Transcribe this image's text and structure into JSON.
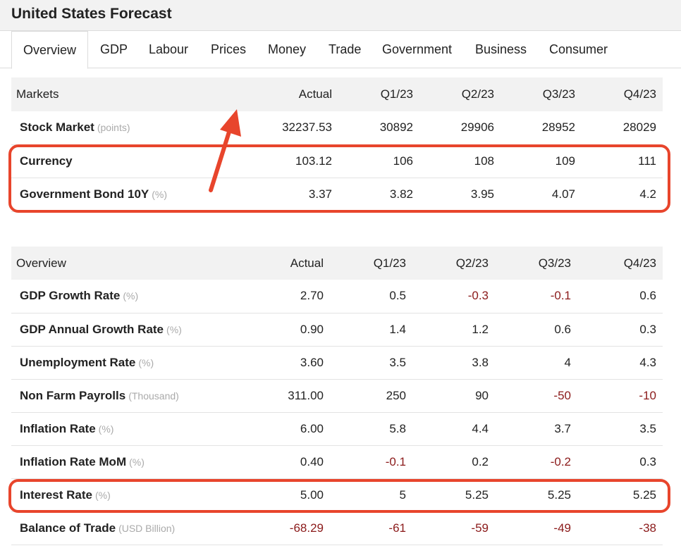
{
  "page": {
    "title": "United States Forecast"
  },
  "tabs": [
    {
      "label": "Overview",
      "active": true
    },
    {
      "label": "GDP"
    },
    {
      "label": "Labour"
    },
    {
      "label": "Prices"
    },
    {
      "label": "Money"
    },
    {
      "label": "Trade"
    },
    {
      "label": "Government"
    },
    {
      "label": "Business"
    },
    {
      "label": "Consumer"
    }
  ],
  "markets": {
    "header": [
      "Markets",
      "Actual",
      "Q1/23",
      "Q2/23",
      "Q3/23",
      "Q4/23"
    ],
    "rows": [
      {
        "name": "Stock Market",
        "unit": "(points)",
        "values": [
          "32237.53",
          "30892",
          "29906",
          "28952",
          "28029"
        ]
      },
      {
        "name": "Currency",
        "unit": "",
        "values": [
          "103.12",
          "106",
          "108",
          "109",
          "111"
        ]
      },
      {
        "name": "Government Bond 10Y",
        "unit": "(%)",
        "values": [
          "3.37",
          "3.82",
          "3.95",
          "4.07",
          "4.2"
        ]
      }
    ]
  },
  "overview": {
    "header": [
      "Overview",
      "Actual",
      "Q1/23",
      "Q2/23",
      "Q3/23",
      "Q4/23"
    ],
    "rows": [
      {
        "name": "GDP Growth Rate",
        "unit": "(%)",
        "values": [
          "2.70",
          "0.5",
          "-0.3",
          "-0.1",
          "0.6"
        ]
      },
      {
        "name": "GDP Annual Growth Rate",
        "unit": "(%)",
        "values": [
          "0.90",
          "1.4",
          "1.2",
          "0.6",
          "0.3"
        ]
      },
      {
        "name": "Unemployment Rate",
        "unit": "(%)",
        "values": [
          "3.60",
          "3.5",
          "3.8",
          "4",
          "4.3"
        ]
      },
      {
        "name": "Non Farm Payrolls",
        "unit": "(Thousand)",
        "values": [
          "311.00",
          "250",
          "90",
          "-50",
          "-10"
        ]
      },
      {
        "name": "Inflation Rate",
        "unit": "(%)",
        "values": [
          "6.00",
          "5.8",
          "4.4",
          "3.7",
          "3.5"
        ]
      },
      {
        "name": "Inflation Rate MoM",
        "unit": "(%)",
        "values": [
          "0.40",
          "-0.1",
          "0.2",
          "-0.2",
          "0.3"
        ]
      },
      {
        "name": "Interest Rate",
        "unit": "(%)",
        "values": [
          "5.00",
          "5",
          "5.25",
          "5.25",
          "5.25"
        ]
      },
      {
        "name": "Balance of Trade",
        "unit": "(USD Billion)",
        "values": [
          "-68.29",
          "-61",
          "-59",
          "-49",
          "-38"
        ]
      }
    ]
  },
  "colors": {
    "negative": "#8b1a1a",
    "highlight": "#e8452c",
    "header_bg": "#f2f2f2"
  }
}
